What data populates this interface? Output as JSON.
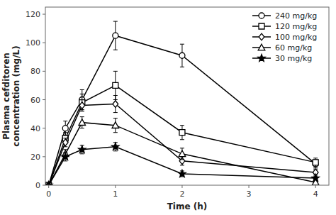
{
  "chart_data": {
    "type": "line",
    "xlabel": "Time (h)",
    "ylabel": "Plasma cefditoren\nconcentration (mg/L)",
    "x": [
      0,
      0.25,
      0.5,
      1,
      2,
      4
    ],
    "series": [
      {
        "name": "240 mg/kg",
        "marker": "circle",
        "values": [
          0,
          40,
          60,
          105,
          91,
          15
        ],
        "errors": [
          0,
          5,
          7,
          10,
          8,
          3
        ]
      },
      {
        "name": "120 mg/kg",
        "marker": "square",
        "values": [
          0,
          33,
          58,
          70,
          37,
          16
        ],
        "errors": [
          0,
          4,
          6,
          10,
          5,
          3
        ]
      },
      {
        "name": "100 mg/kg",
        "marker": "diamond",
        "values": [
          0,
          30,
          56,
          57,
          17,
          9
        ],
        "errors": [
          0,
          3,
          4,
          6,
          3,
          2
        ]
      },
      {
        "name": "60 mg/kg",
        "marker": "triangle",
        "values": [
          0,
          22,
          44,
          42,
          22,
          2
        ],
        "errors": [
          0,
          3,
          4,
          5,
          4,
          1
        ]
      },
      {
        "name": "30 mg/kg",
        "marker": "star",
        "values": [
          0,
          20,
          25,
          27,
          8,
          5
        ],
        "errors": [
          0,
          3,
          3,
          3,
          2,
          1
        ]
      }
    ],
    "color": "black",
    "xlim": [
      -0.05,
      4.2
    ],
    "ylim": [
      0,
      125
    ],
    "xticks": [
      0,
      1,
      2,
      3,
      4
    ],
    "yticks": [
      0,
      20,
      40,
      60,
      80,
      100,
      120
    ],
    "grid": false,
    "legend": "upper right"
  }
}
